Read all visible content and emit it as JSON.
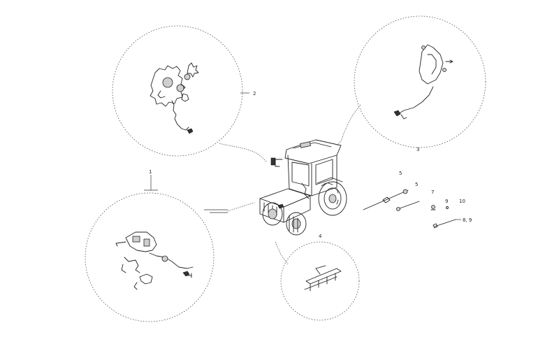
{
  "callouts": {
    "c1": "1",
    "c2": "2",
    "c3": "3",
    "c4": "4",
    "c5a": "5",
    "c5b": "5",
    "c7": "7",
    "c9": "9",
    "c10": "10",
    "c89": "8, 9"
  }
}
